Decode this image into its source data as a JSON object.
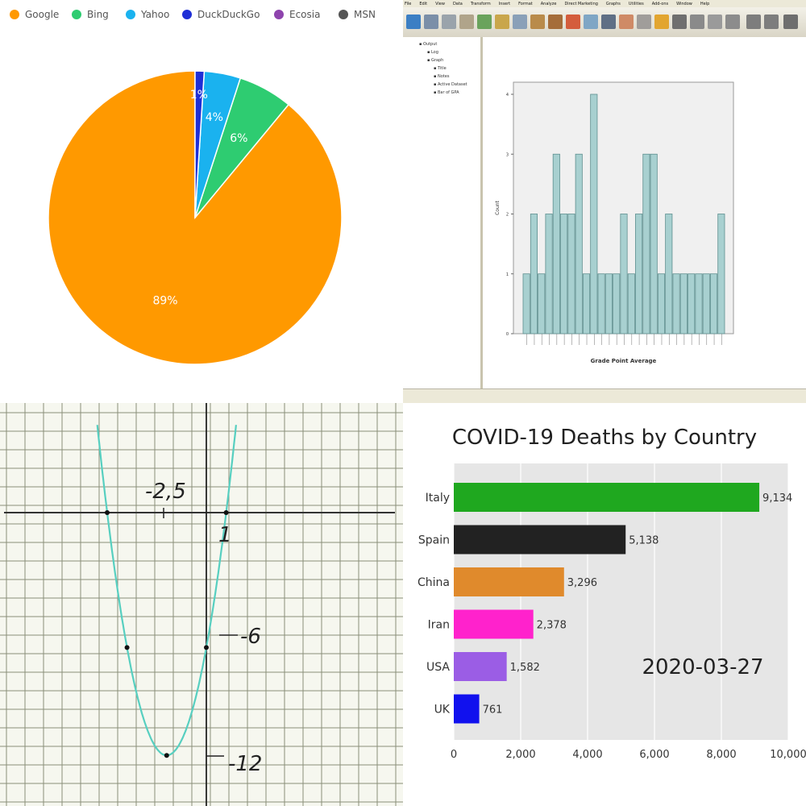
{
  "chart_data": [
    {
      "type": "pie",
      "legend_position": "top",
      "series": [
        {
          "name": "Google",
          "value": 89,
          "label": "89%",
          "color": "#ff9900"
        },
        {
          "name": "Bing",
          "value": 6,
          "label": "6%",
          "color": "#2ecc71"
        },
        {
          "name": "Yahoo",
          "value": 4,
          "label": "4%",
          "color": "#1ab2ef"
        },
        {
          "name": "DuckDuckGo",
          "value": 1,
          "label": "1%",
          "color": "#1f2fd6"
        },
        {
          "name": "Ecosia",
          "value": 0,
          "label": "",
          "color": "#8e44ad"
        },
        {
          "name": "MSN",
          "value": 0,
          "label": "",
          "color": "#555555"
        }
      ]
    },
    {
      "type": "bar",
      "xlabel": "Grade Point Average",
      "ylabel": "Count",
      "ylim": [
        0,
        4
      ],
      "yticks": [
        "0",
        "1",
        "2",
        "3",
        "4"
      ],
      "values": [
        1,
        2,
        1,
        2,
        3,
        2,
        2,
        3,
        1,
        4,
        1,
        1,
        1,
        2,
        1,
        2,
        3,
        3,
        1,
        2,
        1,
        1,
        1,
        1,
        1,
        1,
        2
      ],
      "bar_color": "#a8d0d0",
      "grid": false
    },
    {
      "type": "line",
      "curve": "parabola",
      "labels": [
        {
          "text": "-2,5"
        },
        {
          "text": "1"
        },
        {
          "text": "-6"
        },
        {
          "text": "-12"
        }
      ],
      "points": [
        {
          "x": -5,
          "y": 0
        },
        {
          "x": 1,
          "y": 0
        },
        {
          "x": -4,
          "y": -6
        },
        {
          "x": 0,
          "y": -6
        },
        {
          "x": -2,
          "y": -12
        }
      ],
      "line_color": "#57cfc0"
    },
    {
      "type": "bar",
      "orientation": "horizontal",
      "title": "COVID-19 Deaths by Country",
      "annotation": "2020-03-27",
      "categories": [
        "Italy",
        "Spain",
        "China",
        "Iran",
        "USA",
        "UK"
      ],
      "values": [
        9134,
        5138,
        3296,
        2378,
        1582,
        761
      ],
      "value_labels": [
        "9,134",
        "5,138",
        "3,296",
        "2,378",
        "1,582",
        "761"
      ],
      "colors": [
        "#1fa81f",
        "#222222",
        "#e08a2c",
        "#ff22cc",
        "#9b5de5",
        "#1111ee"
      ],
      "xlim": [
        0,
        10000
      ],
      "xticks": [
        "0",
        "2,000",
        "4,000",
        "6,000",
        "8,000",
        "10,000"
      ],
      "grid": true
    }
  ],
  "spss": {
    "menu": [
      "File",
      "Edit",
      "View",
      "Data",
      "Transform",
      "Insert",
      "Format",
      "Analyze",
      "Direct Marketing",
      "Graphs",
      "Utilities",
      "Add-ons",
      "Window",
      "Help"
    ],
    "nav": [
      "Output",
      "Log",
      "Graph",
      "Title",
      "Notes",
      "Active Dataset",
      "Bar of GPA"
    ]
  }
}
